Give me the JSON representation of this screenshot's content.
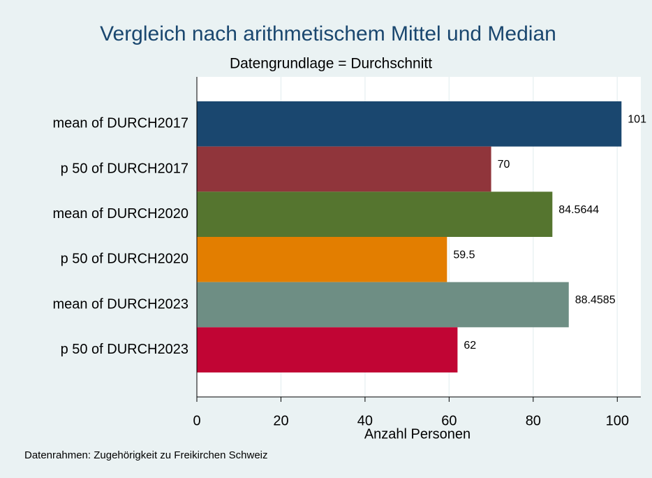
{
  "chart_data": {
    "type": "bar",
    "orientation": "horizontal",
    "title": "Vergleich nach arithmetischem Mittel und Median",
    "subtitle": "Datengrundlage = Durchschnitt",
    "categories": [
      "mean of DURCH2017",
      "p 50 of DURCH2017",
      "mean of DURCH2020",
      "p 50 of DURCH2020",
      "mean of DURCH2023",
      "p 50 of DURCH2023"
    ],
    "values": [
      101,
      70,
      84.5644,
      59.5,
      88.4585,
      62
    ],
    "colors": [
      "#1a476f",
      "#90353b",
      "#55752f",
      "#e37e00",
      "#6e8e84",
      "#c10534"
    ],
    "x_label": "Anzahl Personen",
    "xlim": [
      0,
      105.6
    ],
    "xticks": [
      0,
      20,
      40,
      60,
      80,
      100
    ],
    "grid": true,
    "note": "Datenrahmen: Zugehörigkeit zu Freikirchen Schweiz"
  }
}
